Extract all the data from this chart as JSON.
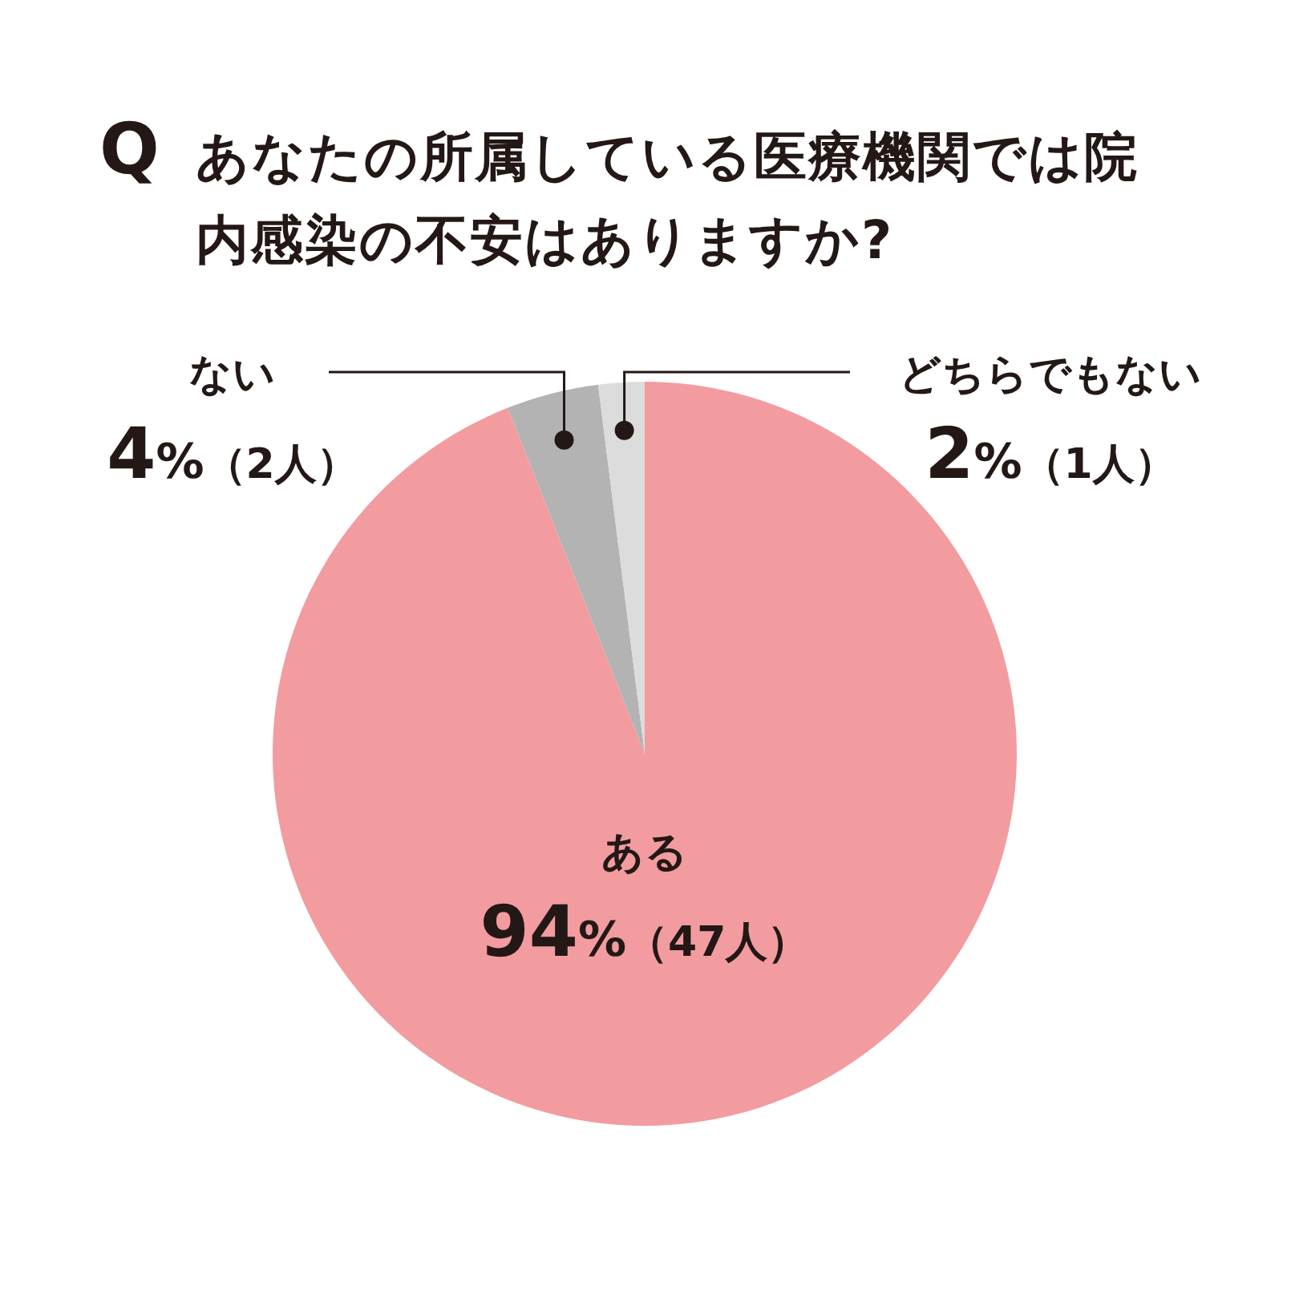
{
  "chart_data": {
    "type": "pie",
    "title": "あなたの所属している医療機関では院内感染の不安はありますか?",
    "annotations": [
      "Q"
    ],
    "categories": [
      "ある",
      "ない",
      "どちらでもない"
    ],
    "values": [
      94,
      4,
      2
    ],
    "colors": [
      "#f29ca0",
      "#b3b3b3",
      "#dcdcdc"
    ],
    "value_labels": [
      "94%（47人）",
      "4%（2人）",
      "2%（1人）"
    ]
  }
}
